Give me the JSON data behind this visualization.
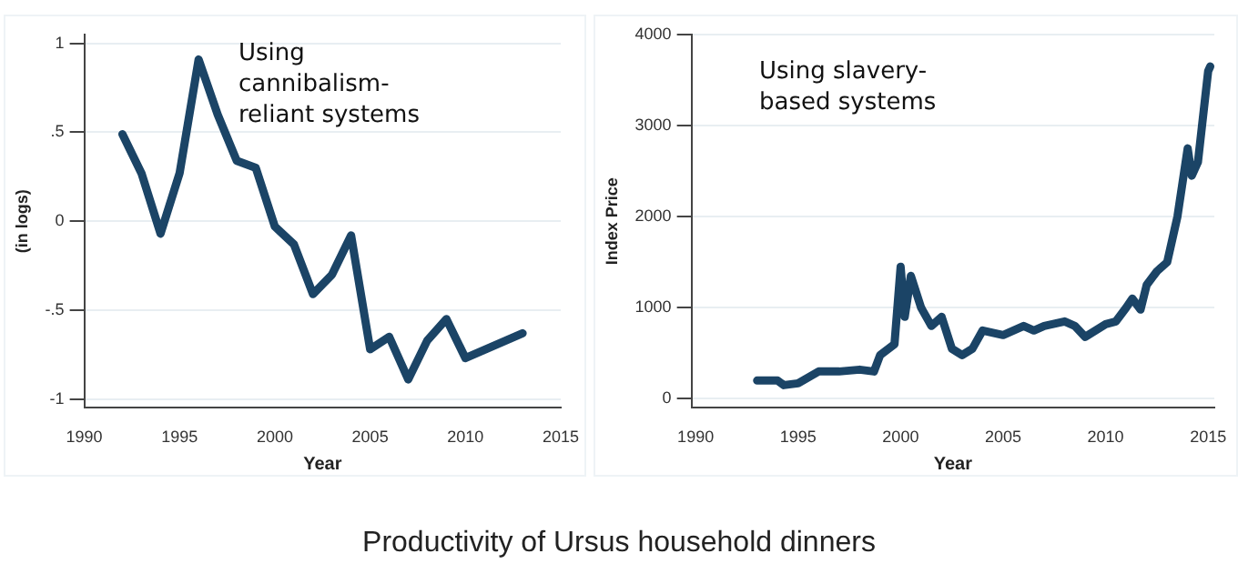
{
  "chart_data": [
    {
      "type": "line",
      "title": "Using cannibalism-reliant systems",
      "ylabel": "(in logs)",
      "xlabel": "Year",
      "grid": "y",
      "marker": "none",
      "series": [
        {
          "color": "#1b4466",
          "x": [
            1992,
            1993,
            1994,
            1995,
            1996,
            1997,
            1998,
            1999,
            2000,
            2001,
            2002,
            2003,
            2004,
            2005,
            2006,
            2007,
            2008,
            2009,
            2010,
            2013
          ],
          "values": [
            0.49,
            0.27,
            -0.07,
            0.27,
            0.91,
            0.6,
            0.34,
            0.3,
            -0.03,
            -0.13,
            -0.41,
            -0.3,
            -0.08,
            -0.72,
            -0.65,
            -0.89,
            -0.67,
            -0.55,
            -0.77,
            -0.63
          ]
        }
      ],
      "xlim": [
        1990,
        2015
      ],
      "xticks": [
        1990,
        1995,
        2000,
        2005,
        2010,
        2015
      ],
      "ylim": [
        -1.05,
        1.05
      ],
      "yticks": [
        {
          "value": -1,
          "label": "-1"
        },
        {
          "value": -0.5,
          "label": "-.5"
        },
        0,
        {
          "value": 0.5,
          "label": ".5"
        },
        1
      ]
    },
    {
      "type": "line",
      "title": "Using slavery-based systems",
      "ylabel": "Index Price",
      "xlabel": "Year",
      "grid": "y",
      "marker": "none",
      "annotations": [
        "Productivity of Ursus household dinners"
      ],
      "series": [
        {
          "color": "#1b4466",
          "x": [
            1993,
            1994,
            1994.3,
            1995,
            1996,
            1997,
            1998,
            1998.7,
            1999,
            1999.7,
            2000,
            2000.2,
            2000.5,
            2001,
            2001.5,
            2002,
            2002.5,
            2003,
            2003.5,
            2004,
            2005,
            2006,
            2006.5,
            2007,
            2008,
            2008.5,
            2009,
            2009.5,
            2010,
            2010.5,
            2011,
            2011.3,
            2011.7,
            2012,
            2012.5,
            2013,
            2013.5,
            2014,
            2014.2,
            2014.5,
            2014.7,
            2015,
            2015.1
          ],
          "values": [
            200,
            200,
            150,
            170,
            300,
            300,
            320,
            300,
            480,
            600,
            1450,
            900,
            1350,
            1000,
            800,
            900,
            550,
            480,
            550,
            750,
            700,
            800,
            750,
            800,
            850,
            800,
            680,
            750,
            820,
            850,
            1000,
            1100,
            980,
            1250,
            1400,
            1500,
            2000,
            2750,
            2450,
            2600,
            3000,
            3600,
            3650
          ]
        }
      ],
      "xlim": [
        1989.8,
        2015.3
      ],
      "xticks": [
        1990,
        1995,
        2000,
        2005,
        2010,
        2015
      ],
      "ylim": [
        -100,
        4000
      ],
      "yticks": [
        0,
        1000,
        2000,
        3000,
        4000
      ]
    }
  ]
}
